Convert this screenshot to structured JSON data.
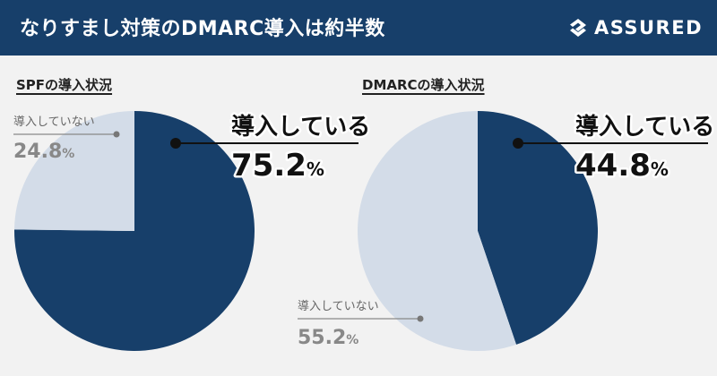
{
  "header": {
    "title": "なりすまし対策のDMARC導入は約半数",
    "brand": "ASSURED"
  },
  "colors": {
    "header_bg": "#173f6a",
    "adopted": "#173f6a",
    "not_adopted": "#d3dce8",
    "bg": "#f2f2f2"
  },
  "chart_data": [
    {
      "type": "pie",
      "title": "SPFの導入状況",
      "slices": [
        {
          "label": "導入している",
          "value": 75.2,
          "display": "75.2",
          "unit": "%",
          "color": "#173f6a"
        },
        {
          "label": "導入していない",
          "value": 24.8,
          "display": "24.8",
          "unit": "%",
          "color": "#d3dce8"
        }
      ]
    },
    {
      "type": "pie",
      "title": "DMARCの導入状況",
      "slices": [
        {
          "label": "導入している",
          "value": 44.8,
          "display": "44.8",
          "unit": "%",
          "color": "#173f6a"
        },
        {
          "label": "導入していない",
          "value": 55.2,
          "display": "55.2",
          "unit": "%",
          "color": "#d3dce8"
        }
      ]
    }
  ]
}
